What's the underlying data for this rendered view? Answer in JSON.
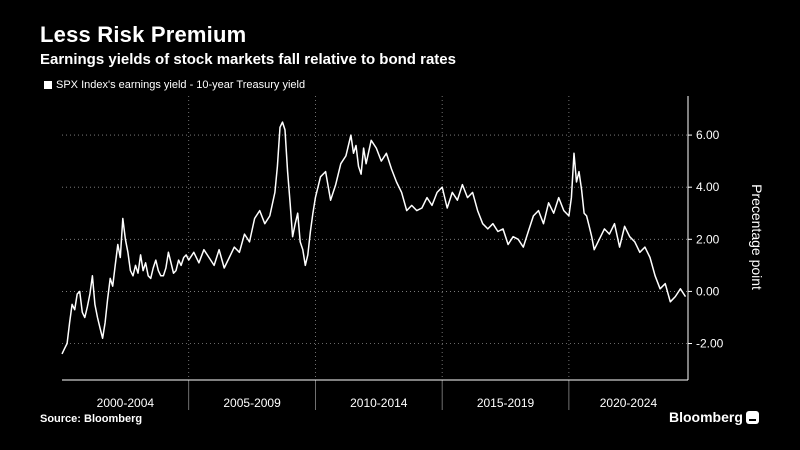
{
  "header": {
    "title": "Less Risk Premium",
    "subtitle": "Earnings yields of stock markets fall relative to bond rates"
  },
  "footer": {
    "source": "Source: Bloomberg",
    "brand": "Bloomberg"
  },
  "colors": {
    "background": "#000000",
    "line": "#ffffff",
    "grid": "#8c8c8c"
  },
  "icons": {
    "legend": "white-square-icon",
    "brand": "bloomberg-logo-icon"
  },
  "chart_data": {
    "type": "line",
    "title": "Less Risk Premium",
    "subtitle": "Earnings yields of stock markets fall relative to bond rates",
    "ylabel": "Precentage point",
    "y_axis_side": "right",
    "ylim": [
      -3.4,
      7.5
    ],
    "yticks": [
      -2,
      0,
      2,
      4,
      6
    ],
    "ytick_labels": [
      "-2.00",
      "0.00",
      "2.00",
      "4.00",
      "6.00"
    ],
    "x_groups": [
      "2000-2004",
      "2005-2009",
      "2010-2014",
      "2015-2019",
      "2020-2024"
    ],
    "xlim": [
      2000.0,
      2024.7
    ],
    "grid": true,
    "legend_position": "top-left",
    "series": [
      {
        "name": "SPX Index's earnings yield - 10-year Treasury yield",
        "x": [
          2000.0,
          2000.1,
          2000.2,
          2000.3,
          2000.4,
          2000.5,
          2000.6,
          2000.7,
          2000.8,
          2000.9,
          2001.0,
          2001.1,
          2001.2,
          2001.3,
          2001.4,
          2001.5,
          2001.6,
          2001.7,
          2001.8,
          2001.9,
          2002.0,
          2002.1,
          2002.2,
          2002.3,
          2002.4,
          2002.5,
          2002.6,
          2002.7,
          2002.8,
          2002.9,
          2003.0,
          2003.1,
          2003.2,
          2003.3,
          2003.4,
          2003.5,
          2003.6,
          2003.7,
          2003.8,
          2003.9,
          2004.0,
          2004.1,
          2004.2,
          2004.3,
          2004.4,
          2004.5,
          2004.6,
          2004.7,
          2004.8,
          2004.9,
          2005.0,
          2005.2,
          2005.4,
          2005.6,
          2005.8,
          2006.0,
          2006.2,
          2006.4,
          2006.6,
          2006.8,
          2007.0,
          2007.2,
          2007.4,
          2007.6,
          2007.8,
          2008.0,
          2008.2,
          2008.4,
          2008.5,
          2008.6,
          2008.7,
          2008.8,
          2008.9,
          2009.0,
          2009.1,
          2009.2,
          2009.3,
          2009.4,
          2009.5,
          2009.6,
          2009.7,
          2009.8,
          2009.9,
          2010.0,
          2010.2,
          2010.4,
          2010.6,
          2010.8,
          2011.0,
          2011.2,
          2011.4,
          2011.5,
          2011.6,
          2011.7,
          2011.8,
          2011.9,
          2012.0,
          2012.2,
          2012.4,
          2012.6,
          2012.8,
          2013.0,
          2013.2,
          2013.4,
          2013.6,
          2013.8,
          2014.0,
          2014.2,
          2014.4,
          2014.6,
          2014.8,
          2015.0,
          2015.2,
          2015.4,
          2015.6,
          2015.8,
          2016.0,
          2016.2,
          2016.4,
          2016.6,
          2016.8,
          2017.0,
          2017.2,
          2017.4,
          2017.6,
          2017.8,
          2018.0,
          2018.2,
          2018.4,
          2018.6,
          2018.8,
          2019.0,
          2019.2,
          2019.4,
          2019.6,
          2019.8,
          2020.0,
          2020.1,
          2020.2,
          2020.3,
          2020.4,
          2020.5,
          2020.6,
          2020.7,
          2020.8,
          2020.9,
          2021.0,
          2021.2,
          2021.4,
          2021.6,
          2021.8,
          2022.0,
          2022.2,
          2022.4,
          2022.6,
          2022.8,
          2023.0,
          2023.2,
          2023.4,
          2023.6,
          2023.8,
          2024.0,
          2024.2,
          2024.4,
          2024.6
        ],
        "values": [
          -2.4,
          -2.2,
          -2.0,
          -1.2,
          -0.5,
          -0.7,
          -0.1,
          0.0,
          -0.8,
          -1.0,
          -0.6,
          -0.1,
          0.6,
          -0.5,
          -1.0,
          -1.4,
          -1.8,
          -1.2,
          -0.3,
          0.5,
          0.2,
          1.0,
          1.8,
          1.3,
          2.8,
          2.0,
          1.5,
          0.8,
          0.6,
          1.0,
          0.7,
          1.4,
          0.8,
          1.1,
          0.6,
          0.5,
          0.9,
          1.2,
          0.8,
          0.6,
          0.6,
          0.9,
          1.5,
          1.1,
          0.7,
          0.8,
          1.2,
          1.0,
          1.3,
          1.4,
          1.2,
          1.5,
          1.1,
          1.6,
          1.3,
          1.0,
          1.6,
          0.9,
          1.3,
          1.7,
          1.5,
          2.2,
          1.9,
          2.8,
          3.1,
          2.6,
          2.9,
          3.8,
          4.8,
          6.3,
          6.5,
          6.2,
          4.6,
          3.4,
          2.1,
          2.6,
          3.0,
          1.9,
          1.6,
          1.0,
          1.4,
          2.3,
          3.0,
          3.6,
          4.4,
          4.6,
          3.5,
          4.1,
          4.9,
          5.2,
          6.0,
          5.3,
          5.6,
          4.8,
          4.5,
          5.5,
          4.9,
          5.8,
          5.5,
          5.0,
          5.3,
          4.7,
          4.2,
          3.8,
          3.1,
          3.3,
          3.1,
          3.2,
          3.6,
          3.3,
          3.8,
          4.0,
          3.2,
          3.8,
          3.5,
          4.1,
          3.6,
          3.8,
          3.1,
          2.6,
          2.4,
          2.6,
          2.3,
          2.4,
          1.8,
          2.1,
          2.0,
          1.7,
          2.3,
          2.9,
          3.1,
          2.6,
          3.4,
          3.0,
          3.6,
          3.1,
          2.9,
          3.6,
          5.3,
          4.2,
          4.6,
          3.9,
          3.0,
          2.9,
          2.5,
          2.1,
          1.6,
          2.0,
          2.4,
          2.2,
          2.6,
          1.7,
          2.5,
          2.1,
          1.9,
          1.5,
          1.7,
          1.3,
          0.6,
          0.1,
          0.3,
          -0.4,
          -0.2,
          0.1,
          -0.2
        ]
      }
    ]
  }
}
